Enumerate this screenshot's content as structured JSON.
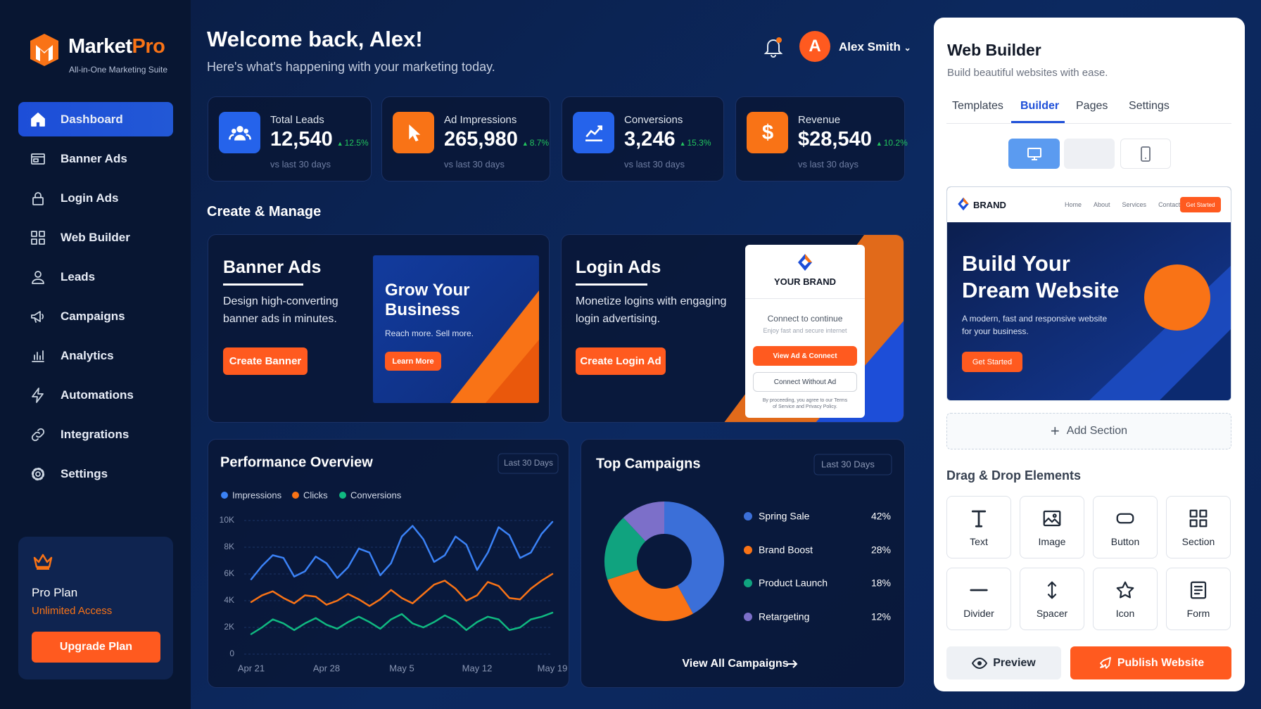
{
  "sidebar": {
    "brand": {
      "name": "Market",
      "accent": "Pro",
      "tagline": "All-in-One Marketing Suite"
    },
    "nav": [
      "Dashboard",
      "Banner Ads",
      "Login Ads",
      "Web Builder",
      "Leads",
      "Campaigns",
      "Analytics",
      "Automations",
      "Integrations",
      "Settings"
    ],
    "plan": {
      "name": "Pro Plan",
      "status": "Unlimited Access",
      "button": "Upgrade Plan"
    }
  },
  "header": {
    "title": "Welcome back, Alex!",
    "subtitle": "Here's what's happening with your marketing today.",
    "avatar": "A",
    "user": "Alex Smith"
  },
  "stats": [
    {
      "label": "Total Leads",
      "value": "12,540",
      "change": "12.5%",
      "note": "vs last 30 days"
    },
    {
      "label": "Ad Impressions",
      "value": "265,980",
      "change": "8.7%",
      "note": "vs last 30 days"
    },
    {
      "label": "Conversions",
      "value": "3,246",
      "change": "15.3%",
      "note": "vs last 30 days"
    },
    {
      "label": "Revenue",
      "value": "$28,540",
      "change": "10.2%",
      "note": "vs last 30 days"
    }
  ],
  "section_title": "Create & Manage",
  "banner_card": {
    "title": "Banner Ads",
    "description": "Design high-converting banner ads in minutes.",
    "button": "Create Banner",
    "preview": {
      "heading": "Grow Your Business",
      "subheading": "Reach more. Sell more.",
      "button": "Learn More"
    }
  },
  "login_card": {
    "title": "Login Ads",
    "description": "Monetize logins with engaging login advertising.",
    "button": "Create Login Ad",
    "preview": {
      "brand": "YOUR BRAND",
      "heading": "Connect to continue",
      "subheading": "Enjoy fast and secure internet",
      "primary": "View Ad & Connect",
      "secondary": "Connect Without Ad",
      "terms": "By proceeding, you agree to our Terms of Service and Privacy Policy."
    }
  },
  "performance": {
    "type": "line",
    "title": "Performance Overview",
    "period": "Last 30 Days",
    "categories": [
      "Apr 21",
      null,
      null,
      null,
      null,
      null,
      null,
      "Apr 28",
      null,
      null,
      null,
      null,
      null,
      null,
      "May 5",
      null,
      null,
      null,
      null,
      null,
      null,
      "May 12",
      null,
      null,
      null,
      null,
      null,
      null,
      "May 19"
    ],
    "series": [
      {
        "name": "Impressions",
        "color": "#3b82f6",
        "values": [
          5600,
          6600,
          7400,
          7200,
          5800,
          6200,
          7300,
          6800,
          5700,
          6500,
          7900,
          7600,
          5900,
          6800,
          8800,
          9600,
          8600,
          6900,
          7400,
          8800,
          8200,
          6300,
          7600,
          9500,
          8900,
          7200,
          7600,
          9000,
          9900
        ]
      },
      {
        "name": "Clicks",
        "color": "#f97316",
        "values": [
          3900,
          4400,
          4700,
          4200,
          3800,
          4400,
          4300,
          3700,
          4000,
          4500,
          4100,
          3600,
          4100,
          4800,
          4200,
          3800,
          4500,
          5200,
          5500,
          4900,
          4000,
          4400,
          5400,
          5100,
          4200,
          4100,
          4900,
          5500,
          6000
        ]
      },
      {
        "name": "Conversions",
        "color": "#10b981",
        "values": [
          1500,
          2000,
          2600,
          2300,
          1800,
          2300,
          2700,
          2200,
          1900,
          2400,
          2800,
          2400,
          1900,
          2600,
          3000,
          2300,
          2000,
          2400,
          2900,
          2500,
          1800,
          2400,
          2800,
          2600,
          1800,
          2000,
          2600,
          2800,
          3100
        ]
      }
    ],
    "ylim": [
      0,
      10000
    ],
    "yticks": [
      0,
      {
        "value": 2000,
        "label": "2K"
      },
      {
        "value": 4000,
        "label": "4K"
      },
      {
        "value": 6000,
        "label": "6K"
      },
      {
        "value": 8000,
        "label": "8K"
      },
      {
        "value": 10000,
        "label": "10K"
      }
    ],
    "grid": true
  },
  "campaigns": {
    "type": "pie",
    "title": "Top Campaigns",
    "period": "Last 30 Days",
    "categories": [
      "Spring Sale",
      "Brand Boost",
      "Product Launch",
      "Retargeting"
    ],
    "values": [
      42,
      28,
      18,
      12
    ],
    "value_labels": [
      "42%",
      "28%",
      "18%",
      "12%"
    ],
    "colors": [
      "#3b6fd8",
      "#f97316",
      "#10a37f",
      "#7c6fc9"
    ],
    "link": "View All Campaigns"
  },
  "web_builder": {
    "title": "Web Builder",
    "subtitle": "Build beautiful websites with ease.",
    "tabs": [
      "Templates",
      "Builder",
      "Pages",
      "Settings"
    ],
    "site": {
      "brand": "BRAND",
      "links": [
        "Home",
        "About",
        "Services",
        "Contact"
      ],
      "nav_button": "Get Started",
      "heading": "Build Your Dream Website",
      "description": "A modern, fast and responsive website for your business.",
      "button": "Get Started"
    },
    "add_section": "Add Section",
    "elements_title": "Drag & Drop Elements",
    "elements": [
      "Text",
      "Image",
      "Button",
      "Section",
      "Divider",
      "Spacer",
      "Icon",
      "Form"
    ],
    "preview": "Preview",
    "publish": "Publish Website"
  }
}
